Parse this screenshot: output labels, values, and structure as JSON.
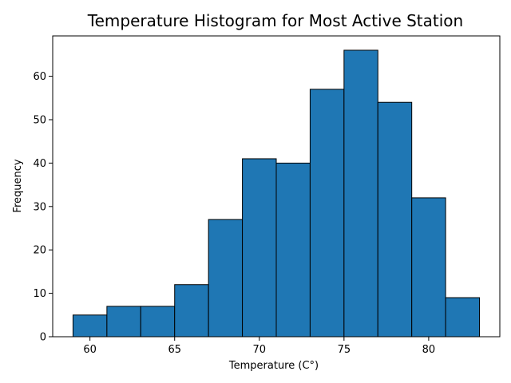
{
  "chart_data": {
    "type": "bar",
    "title": "Temperature Histogram for Most Active Station",
    "xlabel": "Temperature (C°)",
    "ylabel": "Frequency",
    "bins": [
      {
        "start": 59,
        "end": 61,
        "count": 5
      },
      {
        "start": 61,
        "end": 63,
        "count": 7
      },
      {
        "start": 63,
        "end": 65,
        "count": 7
      },
      {
        "start": 65,
        "end": 67,
        "count": 12
      },
      {
        "start": 67,
        "end": 69,
        "count": 27
      },
      {
        "start": 69,
        "end": 71,
        "count": 41
      },
      {
        "start": 71,
        "end": 73,
        "count": 40
      },
      {
        "start": 73,
        "end": 75,
        "count": 57
      },
      {
        "start": 75,
        "end": 77,
        "count": 66
      },
      {
        "start": 77,
        "end": 79,
        "count": 54
      },
      {
        "start": 79,
        "end": 81,
        "count": 32
      },
      {
        "start": 81,
        "end": 83,
        "count": 9
      }
    ],
    "xlim": [
      57.8,
      84.2
    ],
    "ylim": [
      0,
      69.3
    ],
    "xticks": [
      60,
      65,
      70,
      75,
      80
    ],
    "yticks": [
      0,
      10,
      20,
      30,
      40,
      50,
      60
    ],
    "bar_color": "#1f77b4",
    "edge_color": "#000000",
    "grid": false,
    "legend": "none"
  }
}
